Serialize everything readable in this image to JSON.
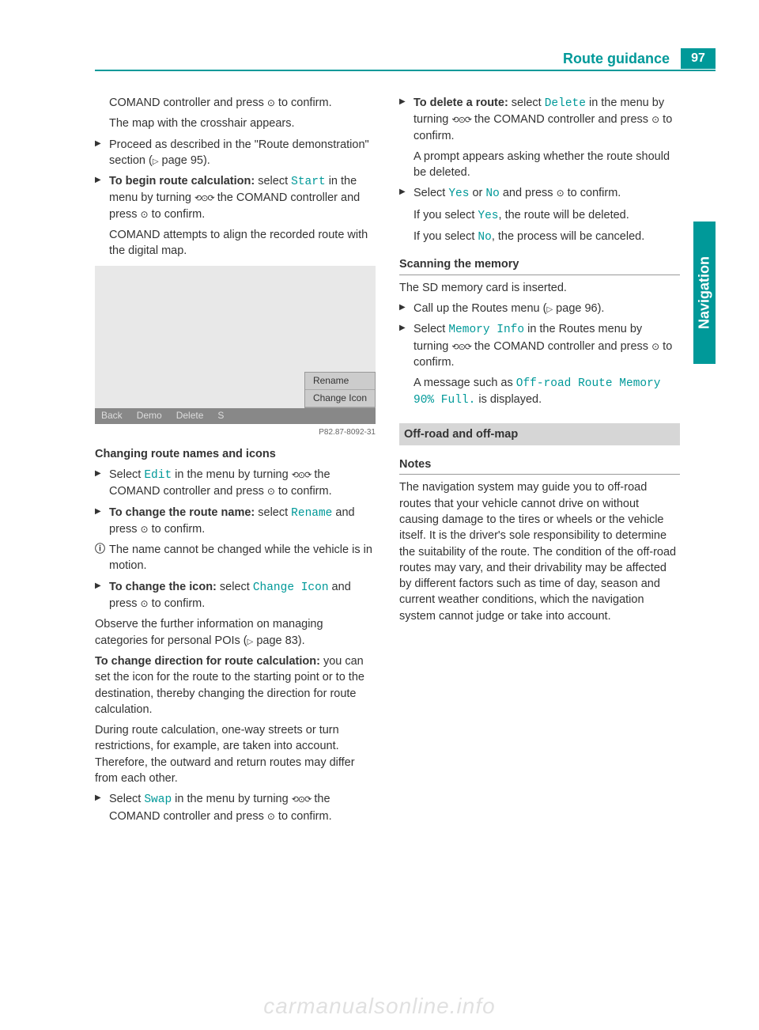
{
  "header": {
    "title": "Route guidance",
    "page_number": "97"
  },
  "side_tab": "Navigation",
  "colors": {
    "accent": "#009999",
    "text": "#333333",
    "bg_box": "#d6d6d6"
  },
  "left": {
    "p1a": "COMAND controller and press ",
    "p1b": " to confirm.",
    "p1c": "The map with the crosshair appears.",
    "p2a": "Proceed as described in the \"Route demonstration\" section (",
    "p2b": " page 95).",
    "p3_label": "To begin route calculation:",
    "p3a": " select ",
    "p3_cmd": "Start",
    "p3b": " in the menu by turning ",
    "p3c": " the COMAND controller and press ",
    "p3d": " to confirm.",
    "p3e": "COMAND attempts to align the recorded route with the digital map.",
    "map": {
      "menu_items": [
        "Rename",
        "Change Icon"
      ],
      "bottom_items": [
        "Back",
        "Demo",
        "Delete",
        "S"
      ],
      "code": "P82.87-8092-31"
    },
    "h_changing": "Changing route names and icons",
    "p4a": "Select ",
    "p4_cmd": "Edit",
    "p4b": " in the menu by turning ",
    "p4c": " the COMAND controller and press ",
    "p4d": " to confirm.",
    "p5_label": "To change the route name:",
    "p5a": " select ",
    "p5_cmd": "Rename",
    "p5b": " and press ",
    "p5c": " to confirm.",
    "p6": "The name cannot be changed while the vehicle is in motion.",
    "p7_label": "To change the icon:",
    "p7a": " select ",
    "p7_cmd": "Change Icon",
    "p7b": " and press ",
    "p7c": " to confirm.",
    "p8a": "Observe the further information on managing categories for personal POIs (",
    "p8b": " page 83).",
    "p9_label": "To change direction for route calculation:",
    "p9": " you can set the icon for the route to the starting point or to the destination, thereby changing the direction for route calculation.",
    "p10": "During route calculation, one-way streets or turn restrictions, for example, are taken into account. Therefore, the outward and return routes may differ from each other.",
    "p11a": "Select ",
    "p11_cmd": "Swap",
    "p11b": " in the menu by turning ",
    "p11c": " the COMAND controller and press ",
    "p11d": " to confirm."
  },
  "right": {
    "p1_label": "To delete a route:",
    "p1a": " select ",
    "p1_cmd": "Delete",
    "p1b": " in the menu by turning ",
    "p1c": " the COMAND controller and press ",
    "p1d": " to confirm.",
    "p1e": "A prompt appears asking whether the route should be deleted.",
    "p2a": "Select ",
    "p2_yes": "Yes",
    "p2b": " or ",
    "p2_no": "No",
    "p2c": " and press ",
    "p2d": " to confirm.",
    "p2e": "If you select ",
    "p2f": ", the route will be deleted.",
    "p3a": "If you select ",
    "p3b": ", the process will be canceled.",
    "h_scan": "Scanning the memory",
    "p4": "The SD memory card is inserted.",
    "p5a": "Call up the Routes menu (",
    "p5b": " page 96).",
    "p6a": "Select ",
    "p6_cmd": "Memory Info",
    "p6b": " in the Routes menu by turning ",
    "p6c": " the COMAND controller and press ",
    "p6d": " to confirm.",
    "p6e": "A message such as ",
    "p6_cmd2": "Off-road Route Memory 90% Full.",
    "p6f": " is displayed.",
    "h_offroad": "Off-road and off-map",
    "h_notes": "Notes",
    "p7": "The navigation system may guide you to off-road routes that your vehicle cannot drive on without causing damage to the tires or wheels or the vehicle itself. It is the driver's sole responsibility to determine the suitability of the route. The condition of the off-road routes may vary, and their drivability may be affected by different factors such as time of day, season and current weather conditions, which the navigation system cannot judge or take into account."
  },
  "watermark": "carmanualsonline.info"
}
